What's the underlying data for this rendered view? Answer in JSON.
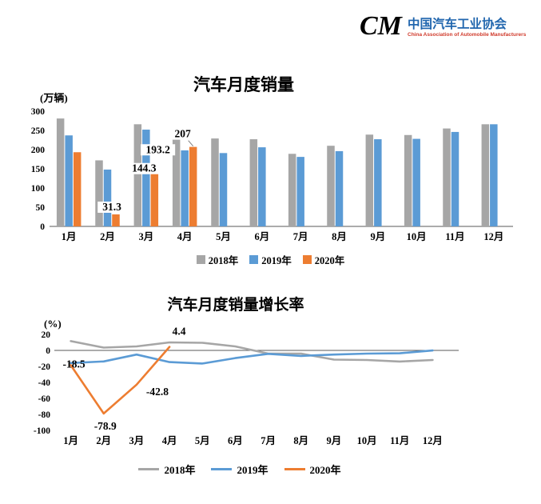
{
  "header": {
    "logo_mark": "CM",
    "brand_color": "#1c9fad",
    "org_name": "中国汽车工业协会",
    "org_name_en": "China Association of Automobile Manufacturers"
  },
  "chart_data": [
    {
      "type": "bar",
      "title": "汽车月度销量",
      "unit_label": "(万辆)",
      "categories": [
        "1月",
        "2月",
        "3月",
        "4月",
        "5月",
        "6月",
        "7月",
        "8月",
        "9月",
        "10月",
        "11月",
        "12月"
      ],
      "ylim": [
        0,
        300
      ],
      "yticks": [
        0,
        50,
        100,
        150,
        200,
        250,
        300
      ],
      "grid": false,
      "legend_position": "bottom",
      "series": [
        {
          "name": "2018年",
          "color": "#a6a6a6",
          "values": [
            281,
            172,
            266,
            232,
            229,
            227,
            189,
            210,
            239,
            238,
            255,
            266
          ]
        },
        {
          "name": "2019年",
          "color": "#5b9bd5",
          "values": [
            237,
            148,
            252,
            198,
            191,
            206,
            181,
            196,
            227,
            228,
            246,
            266
          ]
        },
        {
          "name": "2020年",
          "color": "#ed7d31",
          "values": [
            193.2,
            31.3,
            144.3,
            207,
            null,
            null,
            null,
            null,
            null,
            null,
            null,
            null
          ],
          "labels": [
            "193.2",
            "31.3",
            "144.3",
            "207"
          ]
        }
      ]
    },
    {
      "type": "line",
      "title": "汽车月度销量增长率",
      "unit_label": "(%)",
      "categories": [
        "1月",
        "2月",
        "3月",
        "4月",
        "5月",
        "6月",
        "7月",
        "8月",
        "9月",
        "10月",
        "11月",
        "12月"
      ],
      "ylim": [
        -100,
        20
      ],
      "yticks": [
        20,
        0,
        -20,
        -40,
        -60,
        -80,
        -100
      ],
      "grid": false,
      "legend_position": "bottom",
      "series": [
        {
          "name": "2018年",
          "color": "#a6a6a6",
          "values": [
            11.6,
            3.5,
            5.0,
            10.0,
            9.5,
            5.0,
            -4.0,
            -4.0,
            -11.5,
            -12.0,
            -13.9,
            -12.0
          ]
        },
        {
          "name": "2019年",
          "color": "#5b9bd5",
          "values": [
            -15.8,
            -13.8,
            -5.2,
            -14.6,
            -16.4,
            -9.6,
            -4.3,
            -6.9,
            -5.2,
            -4.0,
            -3.6,
            -0.1
          ]
        },
        {
          "name": "2020年",
          "color": "#ed7d31",
          "values": [
            -18.5,
            -78.9,
            -42.8,
            4.4
          ]
        }
      ],
      "annotations": [
        {
          "text": "-18.5",
          "month_index": 0,
          "value": -18.5,
          "color": "#ff0000"
        },
        {
          "text": "-78.9",
          "month_index": 1,
          "value": -78.9,
          "color": "#ff0000"
        },
        {
          "text": "-42.8",
          "month_index": 2,
          "value": -42.8,
          "color": "#ff0000"
        },
        {
          "text": "4.4",
          "month_index": 3,
          "value": 4.4,
          "color": "#000000"
        }
      ]
    }
  ]
}
